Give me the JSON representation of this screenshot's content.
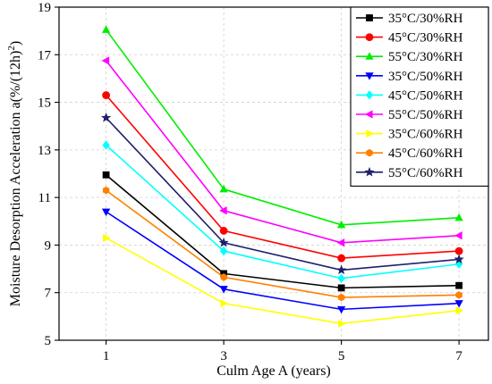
{
  "chart_data": {
    "type": "line",
    "x": [
      1,
      3,
      5,
      7
    ],
    "xlabel": "Culm Age A (years)",
    "ylabel": "Moisture Desorption Acceleration a(%/(12h)²)",
    "xlim": [
      0.2,
      7.5
    ],
    "ylim": [
      5,
      19
    ],
    "xticks": [
      "1",
      "3",
      "5",
      "7"
    ],
    "yticks": [
      "5",
      "7",
      "9",
      "11",
      "13",
      "15",
      "17",
      "19"
    ],
    "grid": true,
    "legend_position": "top-right",
    "series": [
      {
        "name": "35°C/30%RH",
        "color": "#000000",
        "marker": "square",
        "values": [
          11.95,
          7.8,
          7.2,
          7.3
        ]
      },
      {
        "name": "45°C/30%RH",
        "color": "#ff0000",
        "marker": "circle",
        "values": [
          15.3,
          9.6,
          8.45,
          8.75
        ]
      },
      {
        "name": "55°C/30%RH",
        "color": "#00ee00",
        "marker": "triangle-up",
        "values": [
          18.05,
          11.35,
          9.85,
          10.15
        ]
      },
      {
        "name": "35°C/50%RH",
        "color": "#0000ff",
        "marker": "triangle-down",
        "values": [
          10.4,
          7.15,
          6.3,
          6.55
        ]
      },
      {
        "name": "45°C/50%RH",
        "color": "#00ffff",
        "marker": "diamond",
        "values": [
          13.2,
          8.75,
          7.6,
          8.2
        ]
      },
      {
        "name": "55°C/50%RH",
        "color": "#ff00ff",
        "marker": "triangle-left",
        "values": [
          16.75,
          10.45,
          9.1,
          9.4
        ]
      },
      {
        "name": "35°C/60%RH",
        "color": "#ffff00",
        "marker": "triangle-right",
        "values": [
          9.3,
          6.55,
          5.7,
          6.25
        ]
      },
      {
        "name": "45°C/60%RH",
        "color": "#ff8000",
        "marker": "hexagon",
        "values": [
          11.3,
          7.65,
          6.8,
          6.9
        ]
      },
      {
        "name": "55°C/60%RH",
        "color": "#1f1f6b",
        "marker": "star",
        "values": [
          14.35,
          9.1,
          7.95,
          8.4
        ]
      }
    ]
  }
}
